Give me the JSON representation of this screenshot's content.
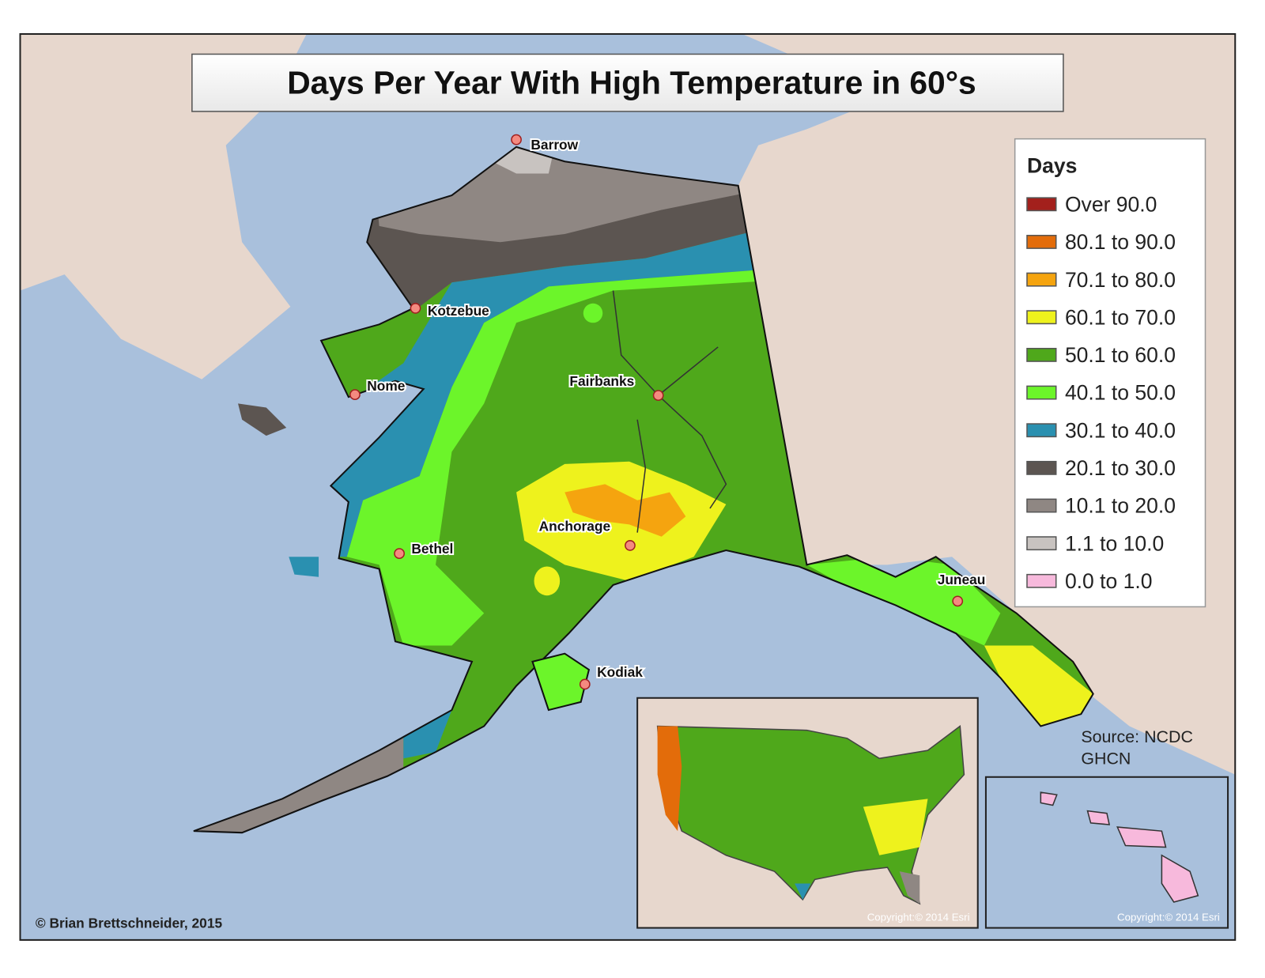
{
  "title": "Days Per Year With High Temperature in 60°s",
  "legend": {
    "title": "Days",
    "items": [
      {
        "label": "Over 90.0",
        "color": "#a3201c"
      },
      {
        "label": "80.1 to 90.0",
        "color": "#e36c0a"
      },
      {
        "label": "70.1 to 80.0",
        "color": "#f5a40f"
      },
      {
        "label": "60.1 to 70.0",
        "color": "#eef21d"
      },
      {
        "label": "50.1 to 60.0",
        "color": "#4fa81b"
      },
      {
        "label": "40.1 to 50.0",
        "color": "#6cf52a"
      },
      {
        "label": "30.1 to 40.0",
        "color": "#2a90b0"
      },
      {
        "label": "20.1 to 30.0",
        "color": "#5c5551"
      },
      {
        "label": "10.1 to 20.0",
        "color": "#8f8783"
      },
      {
        "label": "1.1 to 10.0",
        "color": "#c8c3c0"
      },
      {
        "label": "0.0 to 1.0",
        "color": "#f7b9dc"
      }
    ]
  },
  "cities": [
    "Barrow",
    "Kotzebue",
    "Nome",
    "Fairbanks",
    "Anchorage",
    "Bethel",
    "Juneau",
    "Kodiak"
  ],
  "source": [
    "Source: NCDC",
    "GHCN"
  ],
  "credit": "© Brian Brettschneider, 2015",
  "inset_copyrights": [
    "Copyright:© 2014 Esri",
    "Copyright:© 2014 Esri"
  ]
}
